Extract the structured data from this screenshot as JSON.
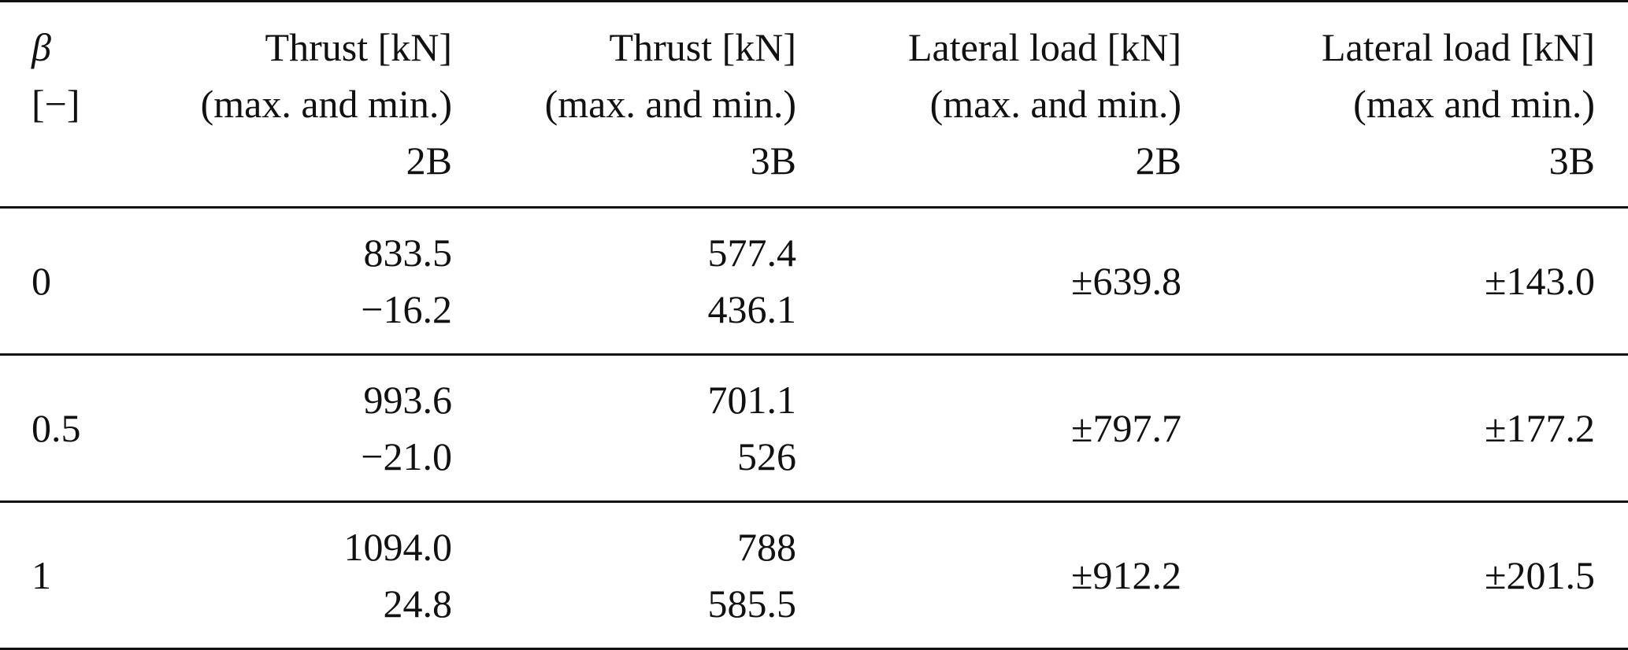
{
  "table": {
    "headers": [
      {
        "lines": [
          "β",
          "[−]"
        ]
      },
      {
        "lines": [
          "Thrust [kN]",
          "(max. and min.)",
          "2B"
        ]
      },
      {
        "lines": [
          "Thrust [kN]",
          "(max. and min.)",
          "3B"
        ]
      },
      {
        "lines": [
          "Lateral load [kN]",
          "(max. and min.)",
          "2B"
        ]
      },
      {
        "lines": [
          "Lateral load [kN]",
          "(max and min.)",
          "3B"
        ]
      }
    ],
    "rows": [
      {
        "beta": "0",
        "thrust_2b": {
          "max": "833.5",
          "min": "−16.2"
        },
        "thrust_3b": {
          "max": "577.4",
          "min": "436.1"
        },
        "lateral_2b": "±639.8",
        "lateral_3b": "±143.0"
      },
      {
        "beta": "0.5",
        "thrust_2b": {
          "max": "993.6",
          "min": "−21.0"
        },
        "thrust_3b": {
          "max": "701.1",
          "min": "526"
        },
        "lateral_2b": "±797.7",
        "lateral_3b": "±177.2"
      },
      {
        "beta": "1",
        "thrust_2b": {
          "max": "1094.0",
          "min": "24.8"
        },
        "thrust_3b": {
          "max": "788",
          "min": "585.5"
        },
        "lateral_2b": "±912.2",
        "lateral_3b": "±201.5"
      }
    ]
  }
}
